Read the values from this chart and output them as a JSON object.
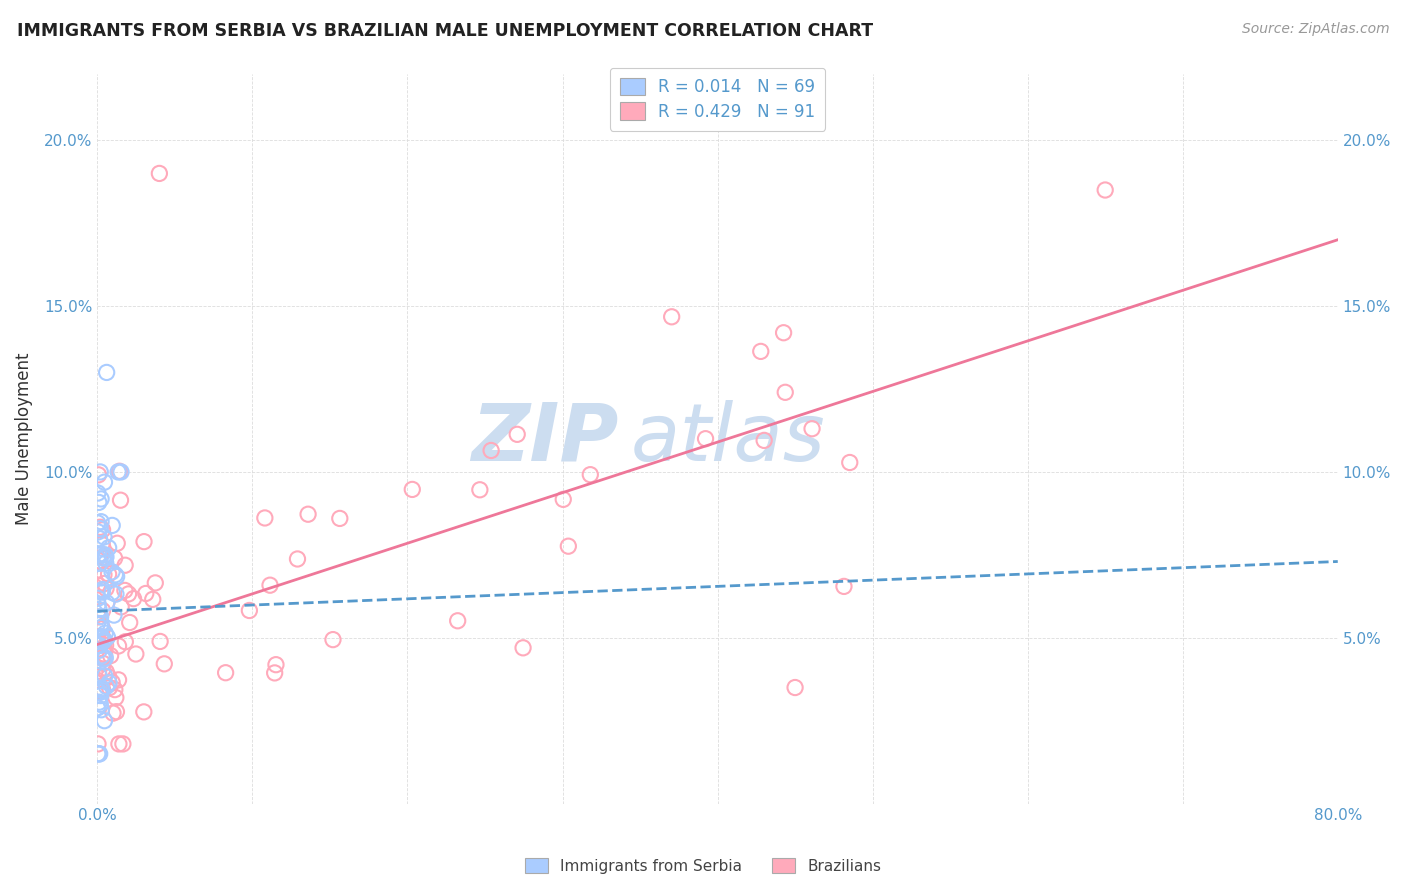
{
  "title": "IMMIGRANTS FROM SERBIA VS BRAZILIAN MALE UNEMPLOYMENT CORRELATION CHART",
  "source": "Source: ZipAtlas.com",
  "ylabel": "Male Unemployment",
  "xlim": [
    0.0,
    0.8
  ],
  "ylim": [
    0.0,
    0.22
  ],
  "xtick_positions": [
    0.0,
    0.1,
    0.2,
    0.3,
    0.4,
    0.5,
    0.6,
    0.7,
    0.8
  ],
  "xtick_labels": [
    "0.0%",
    "",
    "",
    "",
    "",
    "",
    "",
    "",
    "80.0%"
  ],
  "ytick_positions": [
    0.0,
    0.05,
    0.1,
    0.15,
    0.2
  ],
  "ytick_labels": [
    "",
    "5.0%",
    "10.0%",
    "15.0%",
    "20.0%"
  ],
  "serbia_R": 0.014,
  "serbia_N": 69,
  "brazil_R": 0.429,
  "brazil_N": 91,
  "serbia_color": "#aaccff",
  "brazil_color": "#ffaabb",
  "serbia_line_color": "#5599cc",
  "brazil_line_color": "#ee7799",
  "serbia_line_style": "--",
  "brazil_line_style": "-",
  "watermark_zip": "ZIP",
  "watermark_atlas": "atlas",
  "watermark_color_zip": "#ccddf0",
  "watermark_color_atlas": "#ccddf0",
  "legend_serbia_label": "Immigrants from Serbia",
  "legend_brazil_label": "Brazilians",
  "brazil_line_start_y": 0.048,
  "brazil_line_end_y": 0.17,
  "serbia_line_start_y": 0.058,
  "serbia_line_end_y": 0.073,
  "circle_size": 120,
  "circle_linewidth": 1.5
}
